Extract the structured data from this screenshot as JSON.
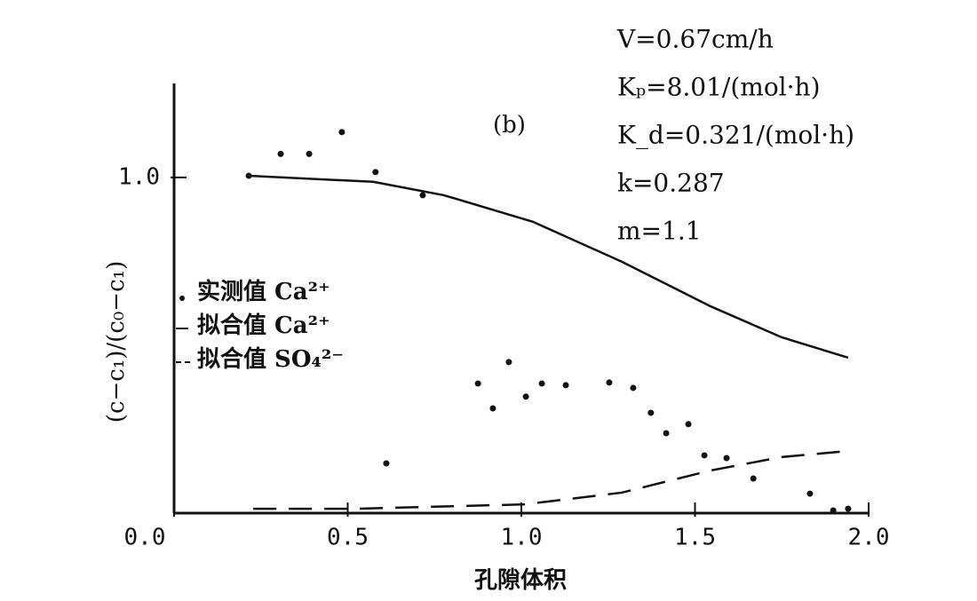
{
  "chart_data": {
    "type": "scatter",
    "panel": "(b)",
    "x_label": "孔隙体积",
    "y_label": "(c−c₁)/(c₀−c₁)",
    "annotations": [
      "V=0.67cm/h",
      "Kₚ=8.01/(mol·h)",
      "K_d=0.321/(mol·h)",
      "k=0.287",
      "m=1.1"
    ],
    "xlim": [
      0,
      2.0
    ],
    "ylim": [
      0,
      1.28
    ],
    "xticks": [
      {
        "value": 0,
        "label": "0.0"
      },
      0.5,
      {
        "value": 1,
        "label": "1.0"
      },
      1.5,
      {
        "value": 2,
        "label": "2.0"
      }
    ],
    "yticks": [
      {
        "value": 1,
        "label": "1.0"
      }
    ],
    "series": [
      {
        "name": "实测值 Ca²⁺",
        "style": "points",
        "color": "#111111",
        "x": [
          0.215,
          0.307,
          0.389,
          0.483,
          0.58,
          0.716,
          0.875,
          0.918,
          0.964,
          1.013,
          1.059,
          1.128,
          1.253,
          1.322,
          1.373,
          1.417,
          1.481,
          1.527,
          1.591,
          1.668,
          0.611,
          1.831,
          1.898,
          1.941
        ],
        "values": [
          1.005,
          1.07,
          1.07,
          1.135,
          1.016,
          0.947,
          0.386,
          0.312,
          0.45,
          0.347,
          0.386,
          0.381,
          0.389,
          0.373,
          0.299,
          0.238,
          0.265,
          0.172,
          0.164,
          0.103,
          0.148,
          0.058,
          0.008,
          0.013
        ]
      },
      {
        "name": "拟合值 Ca²⁺",
        "style": "solid",
        "color": "#111111",
        "x": [
          0.215,
          0.573,
          0.777,
          1.033,
          1.289,
          1.545,
          1.749,
          1.941
        ],
        "values": [
          1.005,
          0.987,
          0.947,
          0.868,
          0.749,
          0.616,
          0.524,
          0.463
        ]
      },
      {
        "name": "拟合值 SO₄²⁻",
        "style": "dashed",
        "color": "#111111",
        "x": [
          0.228,
          0.522,
          1.008,
          1.289,
          1.545,
          1.749,
          1.941
        ],
        "values": [
          0.013,
          0.013,
          0.026,
          0.061,
          0.127,
          0.167,
          0.185
        ]
      }
    ]
  }
}
